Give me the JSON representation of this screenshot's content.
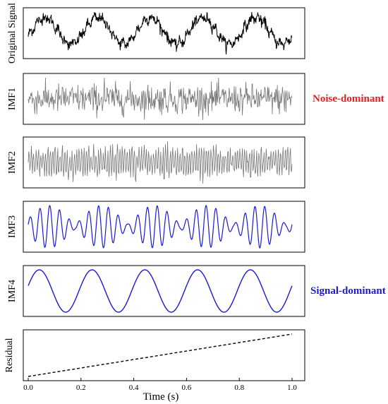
{
  "chart_data": {
    "type": "line",
    "layout": "stacked-subplots",
    "x_range": [
      0,
      1
    ],
    "xlabel": "Time (s)",
    "x_ticks": [
      "0.0",
      "0.2",
      "0.4",
      "0.6",
      "0.8",
      "1.0"
    ],
    "x_tick_values": [
      0,
      0.2,
      0.4,
      0.6,
      0.8,
      1.0
    ],
    "panels": [
      {
        "ylabel": "Original Signal",
        "color": "#000000",
        "style": "solid",
        "kind": "noisy-sine",
        "cycles": 5,
        "amplitude": 0.8,
        "noise": 0.32
      },
      {
        "ylabel": "IMF1",
        "color": "#777777",
        "style": "solid",
        "kind": "noise",
        "annotation": "Noise-dominant",
        "annotation_color": "#e02020"
      },
      {
        "ylabel": "IMF2",
        "color": "#777777",
        "style": "solid",
        "kind": "high-frequency-noise"
      },
      {
        "ylabel": "IMF3",
        "color": "#1a1ad0",
        "style": "solid",
        "kind": "beating-oscillation"
      },
      {
        "ylabel": "IMF4",
        "color": "#1a1ad0",
        "style": "solid",
        "kind": "sine",
        "cycles": 5,
        "amplitude": 1,
        "annotation": "Signal-dominant",
        "annotation_color": "#1a1ad0"
      },
      {
        "ylabel": "Residual",
        "color": "#000000",
        "style": "dashed",
        "kind": "linear-trend",
        "x": [
          0,
          1
        ],
        "y": [
          0,
          1
        ]
      }
    ]
  }
}
